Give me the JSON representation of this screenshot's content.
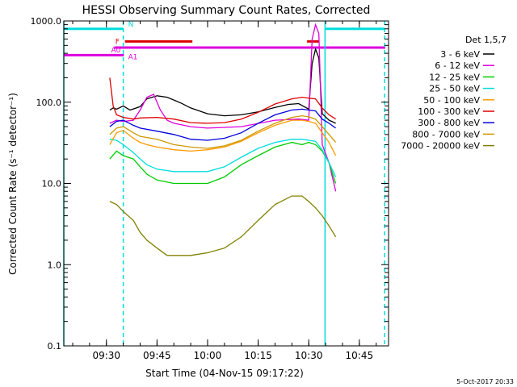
{
  "chart_data": {
    "type": "line",
    "title": "HESSI Observing Summary Count Rates, Corrected",
    "xlabel": "Start Time (04-Nov-15 09:17:22)",
    "ylabel": "Corrected Count Rate (s⁻¹ detector⁻¹)",
    "date_stamp": "5-Oct-2017 20:33",
    "yscale": "log",
    "ylim": [
      0.1,
      1000
    ],
    "y_ticks": [
      {
        "value": 0.1,
        "label": "0.1"
      },
      {
        "value": 1,
        "label": "1.0"
      },
      {
        "value": 10,
        "label": "10.0"
      },
      {
        "value": 100,
        "label": "100.0"
      },
      {
        "value": 1000,
        "label": "1000.0"
      }
    ],
    "xlim": [
      "09:17:22",
      "10:53:40"
    ],
    "x_ticks": [
      "09:30",
      "09:45",
      "10:00",
      "10:15",
      "10:30",
      "10:45"
    ],
    "legend": {
      "title": "Det 1,5,7",
      "placement": "outside-right"
    },
    "series": [
      {
        "name": "3 - 6 keV",
        "color": "#000000",
        "points": [
          [
            "09:31",
            80
          ],
          [
            "09:32",
            85
          ],
          [
            "09:33",
            82
          ],
          [
            "09:35",
            90
          ],
          [
            "09:37",
            80
          ],
          [
            "09:40",
            88
          ],
          [
            "09:42",
            110
          ],
          [
            "09:45",
            120
          ],
          [
            "09:48",
            115
          ],
          [
            "09:52",
            98
          ],
          [
            "09:55",
            85
          ],
          [
            "10:00",
            72
          ],
          [
            "10:05",
            68
          ],
          [
            "10:10",
            70
          ],
          [
            "10:15",
            76
          ],
          [
            "10:20",
            86
          ],
          [
            "10:24",
            94
          ],
          [
            "10:27",
            96
          ],
          [
            "10:30",
            82
          ],
          [
            "10:31",
            300
          ],
          [
            "10:32",
            450
          ],
          [
            "10:33",
            350
          ],
          [
            "10:34",
            72
          ],
          [
            "10:36",
            60
          ],
          [
            "10:38",
            55
          ]
        ]
      },
      {
        "name": "6 - 12 keV",
        "color": "#dd00dd",
        "points": [
          [
            "09:31",
            55
          ],
          [
            "09:33",
            60
          ],
          [
            "09:35",
            58
          ],
          [
            "09:38",
            60
          ],
          [
            "09:40",
            80
          ],
          [
            "09:42",
            115
          ],
          [
            "09:44",
            125
          ],
          [
            "09:46",
            80
          ],
          [
            "09:48",
            60
          ],
          [
            "09:50",
            55
          ],
          [
            "09:55",
            50
          ],
          [
            "10:00",
            48
          ],
          [
            "10:10",
            50
          ],
          [
            "10:20",
            60
          ],
          [
            "10:27",
            62
          ],
          [
            "10:30",
            60
          ],
          [
            "10:31",
            600
          ],
          [
            "10:32",
            900
          ],
          [
            "10:33",
            700
          ],
          [
            "10:34",
            30
          ],
          [
            "10:36",
            18
          ],
          [
            "10:38",
            8
          ]
        ]
      },
      {
        "name": "12 - 25 keV",
        "color": "#00cc00",
        "points": [
          [
            "09:31",
            20
          ],
          [
            "09:33",
            25
          ],
          [
            "09:35",
            22
          ],
          [
            "09:38",
            20
          ],
          [
            "09:40",
            16
          ],
          [
            "09:42",
            13
          ],
          [
            "09:45",
            11
          ],
          [
            "09:50",
            10
          ],
          [
            "09:55",
            10
          ],
          [
            "10:00",
            10
          ],
          [
            "10:05",
            12
          ],
          [
            "10:10",
            17
          ],
          [
            "10:15",
            22
          ],
          [
            "10:20",
            28
          ],
          [
            "10:25",
            32
          ],
          [
            "10:28",
            30
          ],
          [
            "10:30",
            32
          ],
          [
            "10:32",
            30
          ],
          [
            "10:34",
            25
          ],
          [
            "10:36",
            18
          ],
          [
            "10:38",
            10
          ]
        ]
      },
      {
        "name": "25 - 50 keV",
        "color": "#00dddd",
        "points": [
          [
            "09:31",
            35
          ],
          [
            "09:33",
            34
          ],
          [
            "09:35",
            30
          ],
          [
            "09:38",
            24
          ],
          [
            "09:40",
            20
          ],
          [
            "09:42",
            17
          ],
          [
            "09:45",
            15
          ],
          [
            "09:50",
            14
          ],
          [
            "09:55",
            14
          ],
          [
            "10:00",
            14
          ],
          [
            "10:05",
            16
          ],
          [
            "10:10",
            21
          ],
          [
            "10:15",
            27
          ],
          [
            "10:20",
            32
          ],
          [
            "10:25",
            35
          ],
          [
            "10:28",
            35
          ],
          [
            "10:30",
            34
          ],
          [
            "10:32",
            33
          ],
          [
            "10:34",
            26
          ],
          [
            "10:36",
            18
          ],
          [
            "10:38",
            12
          ]
        ]
      },
      {
        "name": "50 - 100 keV",
        "color": "#ff9900",
        "points": [
          [
            "09:31",
            30
          ],
          [
            "09:33",
            42
          ],
          [
            "09:35",
            45
          ],
          [
            "09:38",
            36
          ],
          [
            "09:40",
            32
          ],
          [
            "09:42",
            30
          ],
          [
            "09:45",
            28
          ],
          [
            "09:50",
            26
          ],
          [
            "09:55",
            25
          ],
          [
            "10:00",
            26
          ],
          [
            "10:05",
            28
          ],
          [
            "10:10",
            33
          ],
          [
            "10:15",
            42
          ],
          [
            "10:20",
            52
          ],
          [
            "10:25",
            60
          ],
          [
            "10:28",
            60
          ],
          [
            "10:30",
            58
          ],
          [
            "10:32",
            55
          ],
          [
            "10:34",
            42
          ],
          [
            "10:36",
            32
          ],
          [
            "10:38",
            22
          ]
        ]
      },
      {
        "name": "100 - 300 keV",
        "color": "#dd0000",
        "points": [
          [
            "09:31",
            200
          ],
          [
            "09:32",
            90
          ],
          [
            "09:33",
            70
          ],
          [
            "09:35",
            65
          ],
          [
            "09:38",
            62
          ],
          [
            "09:40",
            64
          ],
          [
            "09:45",
            65
          ],
          [
            "09:50",
            62
          ],
          [
            "09:55",
            56
          ],
          [
            "10:00",
            55
          ],
          [
            "10:05",
            56
          ],
          [
            "10:10",
            62
          ],
          [
            "10:15",
            75
          ],
          [
            "10:20",
            95
          ],
          [
            "10:25",
            110
          ],
          [
            "10:28",
            115
          ],
          [
            "10:30",
            112
          ],
          [
            "10:32",
            110
          ],
          [
            "10:34",
            85
          ],
          [
            "10:36",
            70
          ],
          [
            "10:38",
            62
          ]
        ]
      },
      {
        "name": "300 - 800 keV",
        "color": "#0000dd",
        "points": [
          [
            "09:31",
            50
          ],
          [
            "09:33",
            58
          ],
          [
            "09:35",
            60
          ],
          [
            "09:38",
            52
          ],
          [
            "09:40",
            48
          ],
          [
            "09:45",
            44
          ],
          [
            "09:50",
            40
          ],
          [
            "09:55",
            35
          ],
          [
            "10:00",
            34
          ],
          [
            "10:05",
            36
          ],
          [
            "10:10",
            42
          ],
          [
            "10:15",
            55
          ],
          [
            "10:20",
            70
          ],
          [
            "10:25",
            80
          ],
          [
            "10:28",
            82
          ],
          [
            "10:30",
            80
          ],
          [
            "10:32",
            78
          ],
          [
            "10:34",
            62
          ],
          [
            "10:36",
            55
          ],
          [
            "10:38",
            48
          ]
        ]
      },
      {
        "name": "800 - 7000 keV",
        "color": "#cc9900",
        "points": [
          [
            "09:31",
            40
          ],
          [
            "09:33",
            48
          ],
          [
            "09:35",
            50
          ],
          [
            "09:38",
            42
          ],
          [
            "09:40",
            38
          ],
          [
            "09:45",
            35
          ],
          [
            "09:50",
            30
          ],
          [
            "09:55",
            28
          ],
          [
            "10:00",
            27
          ],
          [
            "10:05",
            29
          ],
          [
            "10:10",
            34
          ],
          [
            "10:15",
            44
          ],
          [
            "10:20",
            55
          ],
          [
            "10:25",
            65
          ],
          [
            "10:28",
            68
          ],
          [
            "10:30",
            66
          ],
          [
            "10:32",
            62
          ],
          [
            "10:34",
            50
          ],
          [
            "10:36",
            40
          ],
          [
            "10:38",
            32
          ]
        ]
      },
      {
        "name": "7000 - 20000 keV",
        "color": "#808000",
        "points": [
          [
            "09:31",
            6
          ],
          [
            "09:33",
            5.5
          ],
          [
            "09:35",
            4.5
          ],
          [
            "09:38",
            3.5
          ],
          [
            "09:40",
            2.5
          ],
          [
            "09:42",
            2
          ],
          [
            "09:45",
            1.6
          ],
          [
            "09:48",
            1.3
          ],
          [
            "09:50",
            1.3
          ],
          [
            "09:55",
            1.3
          ],
          [
            "10:00",
            1.4
          ],
          [
            "10:05",
            1.6
          ],
          [
            "10:10",
            2.2
          ],
          [
            "10:15",
            3.5
          ],
          [
            "10:20",
            5.5
          ],
          [
            "10:25",
            7
          ],
          [
            "10:28",
            7
          ],
          [
            "10:30",
            6
          ],
          [
            "10:32",
            5
          ],
          [
            "10:34",
            4
          ],
          [
            "10:36",
            3
          ],
          [
            "10:38",
            2.2
          ]
        ]
      }
    ],
    "flag_bars": [
      {
        "label": "N",
        "color": "#00dddd",
        "value": 800,
        "segments": [
          [
            "09:17:22",
            "09:35:00"
          ],
          [
            "10:34:50",
            "10:52:30"
          ]
        ]
      },
      {
        "label": "F",
        "color": "#dd0000",
        "value": 560,
        "segments": [
          [
            "09:35:30",
            "09:55:30"
          ],
          [
            "10:29:30",
            "10:33:00"
          ]
        ]
      },
      {
        "label": "A0",
        "color": "#dd00dd",
        "value": 470,
        "segments": [
          [
            "09:32:20",
            "10:52:40"
          ]
        ]
      },
      {
        "label": "A1",
        "color": "#dd00dd",
        "value": 380,
        "segments": [
          [
            "09:17:22",
            "09:35:10"
          ]
        ]
      }
    ],
    "vertical_lines": [
      {
        "time": "09:17:22",
        "color": "#00dddd",
        "style": "solid"
      },
      {
        "time": "09:35:00",
        "color": "#00dddd",
        "style": "dashed"
      },
      {
        "time": "10:34:50",
        "color": "#00dddd",
        "style": "solid"
      },
      {
        "time": "10:52:30",
        "color": "#00dddd",
        "style": "dashed"
      }
    ]
  }
}
